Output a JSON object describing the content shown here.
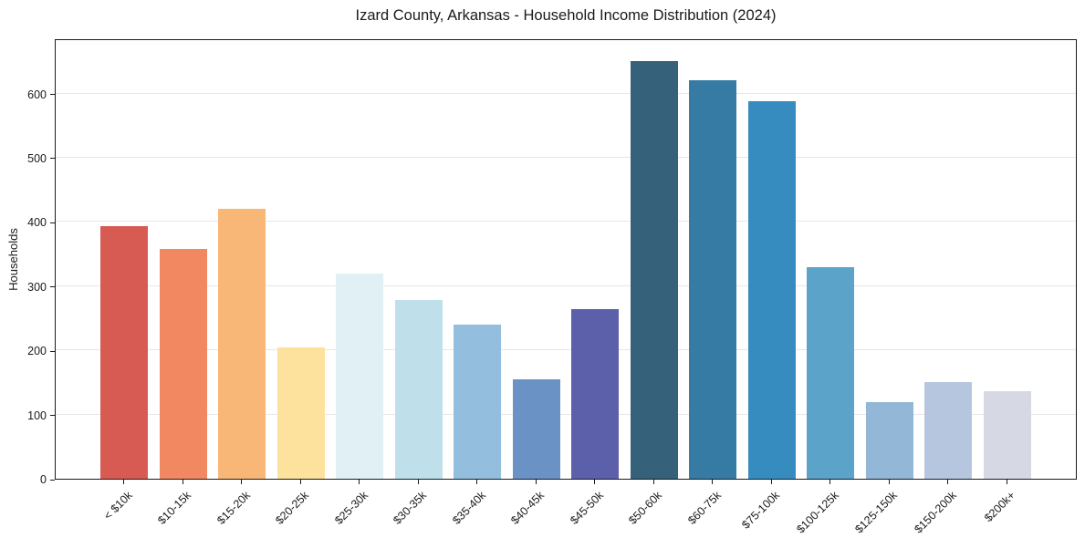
{
  "chart_data": {
    "type": "bar",
    "title": "Izard County, Arkansas - Household Income Distribution (2024)",
    "xlabel": "",
    "ylabel": "Households",
    "categories": [
      "< $10k",
      "$10-15k",
      "$15-20k",
      "$20-25k",
      "$25-30k",
      "$30-35k",
      "$35-40k",
      "$40-45k",
      "$45-50k",
      "$50-60k",
      "$60-75k",
      "$75-100k",
      "$100-125k",
      "$125-150k",
      "$150-200k",
      "$200k+"
    ],
    "values": [
      394,
      358,
      421,
      204,
      320,
      279,
      240,
      155,
      264,
      650,
      620,
      588,
      329,
      119,
      150,
      137
    ],
    "bar_colors": [
      "#d85b53",
      "#f28861",
      "#f9b777",
      "#fce29c",
      "#e1f0f5",
      "#bfe0ea",
      "#93bedd",
      "#6a92c5",
      "#5c5fa9",
      "#35617a",
      "#367ba4",
      "#378cbf",
      "#5ba3c9",
      "#92b7d7",
      "#b6c6de",
      "#d6d8e4"
    ],
    "ylim": [
      0,
      686
    ],
    "yticks": [
      0,
      100,
      200,
      300,
      400,
      500,
      600
    ],
    "grid": "horizontal",
    "legend": "none",
    "background_color": "#ffffff",
    "axis_color": "#1a1a1a",
    "grid_color": "#e7e7e7",
    "text_color": "#1a1a1a"
  }
}
